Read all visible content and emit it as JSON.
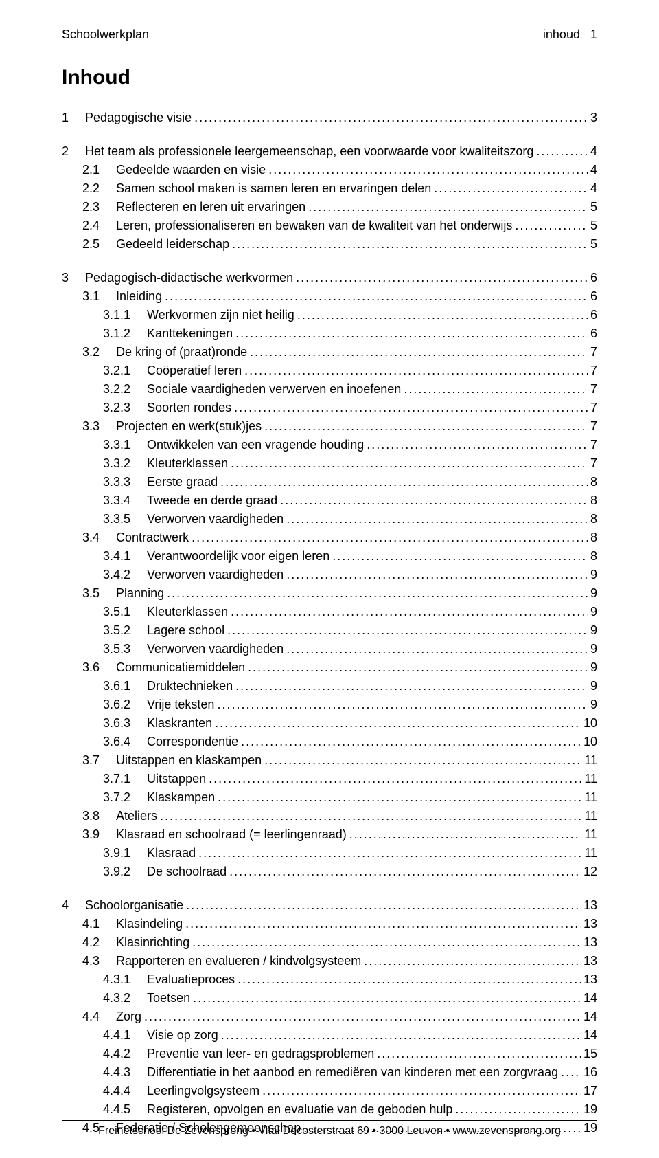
{
  "header": {
    "left": "Schoolwerkplan",
    "right_label": "inhoud",
    "right_num": "1"
  },
  "title": "Inhoud",
  "toc": [
    {
      "indent": 0,
      "num": "1",
      "label": "Pedagogische visie",
      "page": "3",
      "gap_after": true
    },
    {
      "indent": 0,
      "num": "2",
      "label": "Het team als professionele leergemeenschap, een voorwaarde voor kwaliteitszorg",
      "page": "4"
    },
    {
      "indent": 1,
      "num": "2.1",
      "label": "Gedeelde waarden en visie",
      "page": "4"
    },
    {
      "indent": 1,
      "num": "2.2",
      "label": "Samen school maken is samen leren en ervaringen delen",
      "page": "4"
    },
    {
      "indent": 1,
      "num": "2.3",
      "label": "Reflecteren en leren uit ervaringen",
      "page": "5"
    },
    {
      "indent": 1,
      "num": "2.4",
      "label": "Leren, professionaliseren en bewaken van de kwaliteit van het onderwijs",
      "page": "5"
    },
    {
      "indent": 1,
      "num": "2.5",
      "label": "Gedeeld leiderschap",
      "page": "5",
      "gap_after": true
    },
    {
      "indent": 0,
      "num": "3",
      "label": "Pedagogisch-didactische werkvormen",
      "page": "6"
    },
    {
      "indent": 1,
      "num": "3.1",
      "label": "Inleiding",
      "page": "6"
    },
    {
      "indent": 2,
      "num": "3.1.1",
      "label": "Werkvormen zijn niet heilig",
      "page": "6"
    },
    {
      "indent": 2,
      "num": "3.1.2",
      "label": "Kanttekeningen",
      "page": "6"
    },
    {
      "indent": 1,
      "num": "3.2",
      "label": "De kring of (praat)ronde",
      "page": "7"
    },
    {
      "indent": 2,
      "num": "3.2.1",
      "label": "Coöperatief leren",
      "page": "7"
    },
    {
      "indent": 2,
      "num": "3.2.2",
      "label": "Sociale vaardigheden verwerven en inoefenen",
      "page": "7"
    },
    {
      "indent": 2,
      "num": "3.2.3",
      "label": "Soorten rondes",
      "page": "7"
    },
    {
      "indent": 1,
      "num": "3.3",
      "label": "Projecten en werk(stuk)jes",
      "page": "7"
    },
    {
      "indent": 2,
      "num": "3.3.1",
      "label": "Ontwikkelen van een vragende houding",
      "page": "7"
    },
    {
      "indent": 2,
      "num": "3.3.2",
      "label": "Kleuterklassen",
      "page": "7"
    },
    {
      "indent": 2,
      "num": "3.3.3",
      "label": "Eerste graad",
      "page": "8"
    },
    {
      "indent": 2,
      "num": "3.3.4",
      "label": "Tweede en derde graad",
      "page": "8"
    },
    {
      "indent": 2,
      "num": "3.3.5",
      "label": "Verworven vaardigheden",
      "page": "8"
    },
    {
      "indent": 1,
      "num": "3.4",
      "label": "Contractwerk",
      "page": "8"
    },
    {
      "indent": 2,
      "num": "3.4.1",
      "label": "Verantwoordelijk voor eigen leren",
      "page": "8"
    },
    {
      "indent": 2,
      "num": "3.4.2",
      "label": "Verworven vaardigheden",
      "page": "9"
    },
    {
      "indent": 1,
      "num": "3.5",
      "label": "Planning",
      "page": "9"
    },
    {
      "indent": 2,
      "num": "3.5.1",
      "label": "Kleuterklassen",
      "page": "9"
    },
    {
      "indent": 2,
      "num": "3.5.2",
      "label": "Lagere school",
      "page": "9"
    },
    {
      "indent": 2,
      "num": "3.5.3",
      "label": "Verworven vaardigheden",
      "page": "9"
    },
    {
      "indent": 1,
      "num": "3.6",
      "label": "Communicatiemiddelen",
      "page": "9"
    },
    {
      "indent": 2,
      "num": "3.6.1",
      "label": "Druktechnieken",
      "page": "9"
    },
    {
      "indent": 2,
      "num": "3.6.2",
      "label": "Vrije teksten",
      "page": "9"
    },
    {
      "indent": 2,
      "num": "3.6.3",
      "label": "Klaskranten",
      "page": "10"
    },
    {
      "indent": 2,
      "num": "3.6.4",
      "label": "Correspondentie",
      "page": "10"
    },
    {
      "indent": 1,
      "num": "3.7",
      "label": "Uitstappen en klaskampen",
      "page": "11"
    },
    {
      "indent": 2,
      "num": "3.7.1",
      "label": "Uitstappen",
      "page": "11"
    },
    {
      "indent": 2,
      "num": "3.7.2",
      "label": "Klaskampen",
      "page": "11"
    },
    {
      "indent": 1,
      "num": "3.8",
      "label": "Ateliers",
      "page": "11"
    },
    {
      "indent": 1,
      "num": "3.9",
      "label": "Klasraad en schoolraad (= leerlingenraad)",
      "page": "11"
    },
    {
      "indent": 2,
      "num": "3.9.1",
      "label": "Klasraad",
      "page": "11"
    },
    {
      "indent": 2,
      "num": "3.9.2",
      "label": "De schoolraad",
      "page": "12",
      "gap_after": true
    },
    {
      "indent": 0,
      "num": "4",
      "label": "Schoolorganisatie",
      "page": "13"
    },
    {
      "indent": 1,
      "num": "4.1",
      "label": "Klasindeling",
      "page": "13"
    },
    {
      "indent": 1,
      "num": "4.2",
      "label": "Klasinrichting",
      "page": "13"
    },
    {
      "indent": 1,
      "num": "4.3",
      "label": "Rapporteren en evalueren / kindvolgsysteem",
      "page": "13"
    },
    {
      "indent": 2,
      "num": "4.3.1",
      "label": "Evaluatieproces",
      "page": "13"
    },
    {
      "indent": 2,
      "num": "4.3.2",
      "label": "Toetsen",
      "page": "14"
    },
    {
      "indent": 1,
      "num": "4.4",
      "label": "Zorg",
      "page": "14"
    },
    {
      "indent": 2,
      "num": "4.4.1",
      "label": "Visie op zorg",
      "page": "14"
    },
    {
      "indent": 2,
      "num": "4.4.2",
      "label": "Preventie van leer- en gedragsproblemen",
      "page": "15"
    },
    {
      "indent": 2,
      "num": "4.4.3",
      "label": "Differentiatie in het aanbod en remediëren van kinderen met een zorgvraag",
      "page": "16"
    },
    {
      "indent": 2,
      "num": "4.4.4",
      "label": "Leerlingvolgsysteem",
      "page": "17"
    },
    {
      "indent": 2,
      "num": "4.4.5",
      "label": "Registeren, opvolgen en evaluatie van de geboden hulp",
      "page": "19"
    },
    {
      "indent": 1,
      "num": "4.5",
      "label": "Federatie / Scholengemeenschap",
      "page": "19"
    }
  ],
  "footer": {
    "text": "Freinetschool De Zevensprong  •  Vital Decosterstraat 69  •  3000 Leuven  •  www.zevensprong.org"
  },
  "colors": {
    "text": "#000000",
    "background": "#ffffff",
    "line": "#000000"
  },
  "typography": {
    "body_fontsize_pt": 14,
    "title_fontsize_pt": 22,
    "font_family": "Arial"
  }
}
